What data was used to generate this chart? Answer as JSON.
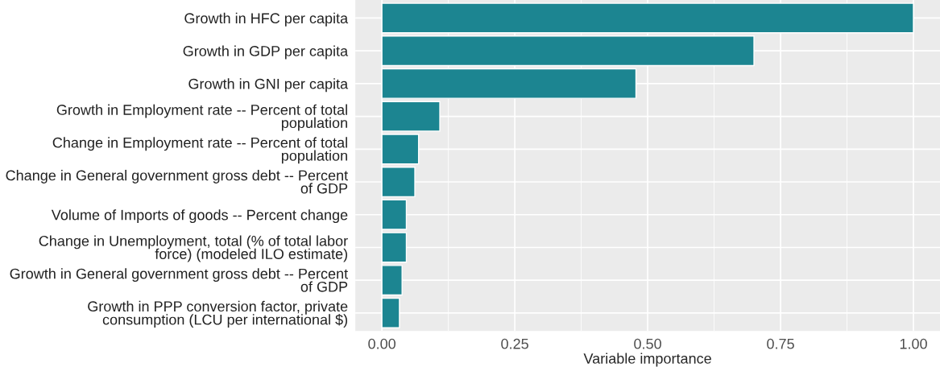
{
  "chart_data": {
    "type": "bar",
    "orientation": "horizontal",
    "xlabel": "Variable importance",
    "categories": [
      "Growth in HFC per capita",
      "Growth in GDP per capita",
      "Growth in GNI per capita",
      "Growth in Employment rate -- Percent of total\npopulation",
      "Change in Employment rate -- Percent of total\npopulation",
      "Change in General government gross debt -- Percent\nof GDP",
      "Volume of Imports of goods -- Percent change",
      "Change in Unemployment, total (% of total labor\nforce) (modeled ILO estimate)",
      "Growth in General government gross debt -- Percent\nof GDP",
      "Growth in PPP conversion factor, private\nconsumption (LCU per international $)"
    ],
    "values": [
      1.0,
      0.7,
      0.478,
      0.109,
      0.069,
      0.062,
      0.046,
      0.046,
      0.038,
      0.033
    ],
    "color": "#1c8591",
    "xlim": [
      -0.05,
      1.05
    ],
    "xticks": [
      {
        "value": 0,
        "label": "0.00"
      },
      0.25,
      {
        "value": 0.5,
        "label": "0.50"
      },
      0.75,
      {
        "value": 1,
        "label": "1.00"
      }
    ],
    "grid": true
  }
}
